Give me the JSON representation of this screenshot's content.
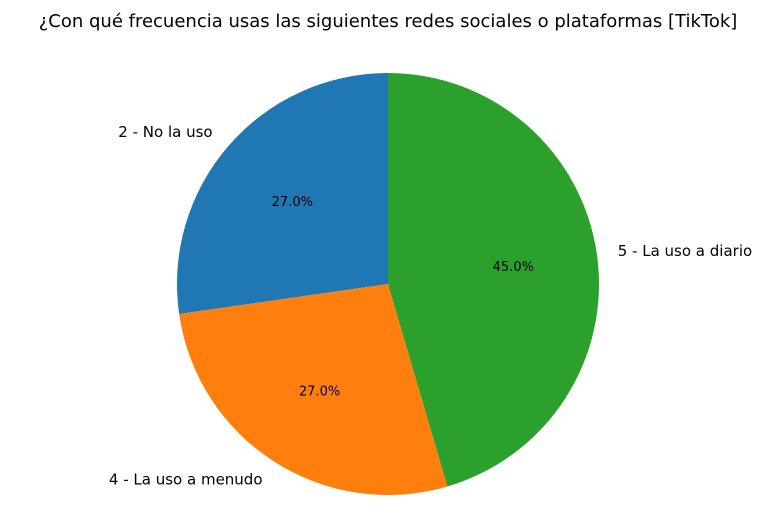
{
  "chart_data": {
    "type": "pie",
    "title": "¿Con qué frecuencia usas las siguientes redes sociales o plataformas [TikTok]",
    "slices": [
      {
        "label": "2 - No la uso",
        "value": 27.0,
        "pct_label": "27.0%",
        "color": "#1f77b4"
      },
      {
        "label": "4 - La uso a menudo",
        "value": 27.0,
        "pct_label": "27.0%",
        "color": "#ff7f0e"
      },
      {
        "label": "5 - La uso a diario",
        "value": 45.0,
        "pct_label": "45.0%",
        "color": "#2ca02c"
      }
    ],
    "start_angle_deg": 90,
    "direction": "counterclockwise",
    "legend": "none"
  }
}
